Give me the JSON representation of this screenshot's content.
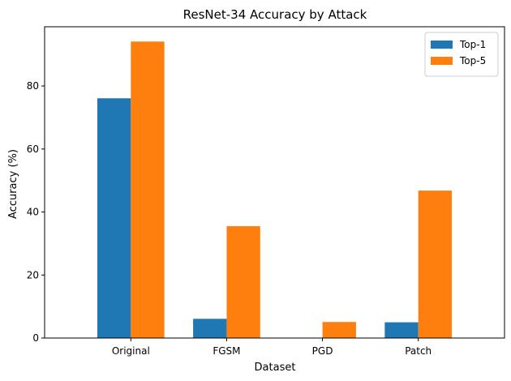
{
  "chart_data": {
    "type": "bar",
    "title": "ResNet-34 Accuracy by Attack",
    "xlabel": "Dataset",
    "ylabel": "Accuracy (%)",
    "categories": [
      "Original",
      "FGSM",
      "PGD",
      "Patch"
    ],
    "series": [
      {
        "name": "Top-1",
        "values": [
          76.1,
          6.1,
          0.0,
          5.0
        ],
        "color": "#1f77b4"
      },
      {
        "name": "Top-5",
        "values": [
          94.1,
          35.5,
          5.1,
          46.8
        ],
        "color": "#ff7f0e"
      }
    ],
    "ylim": [
      0,
      98.8
    ],
    "yticks": [
      0,
      20,
      40,
      60,
      80
    ],
    "grid": false,
    "legend_position": "top-right"
  }
}
